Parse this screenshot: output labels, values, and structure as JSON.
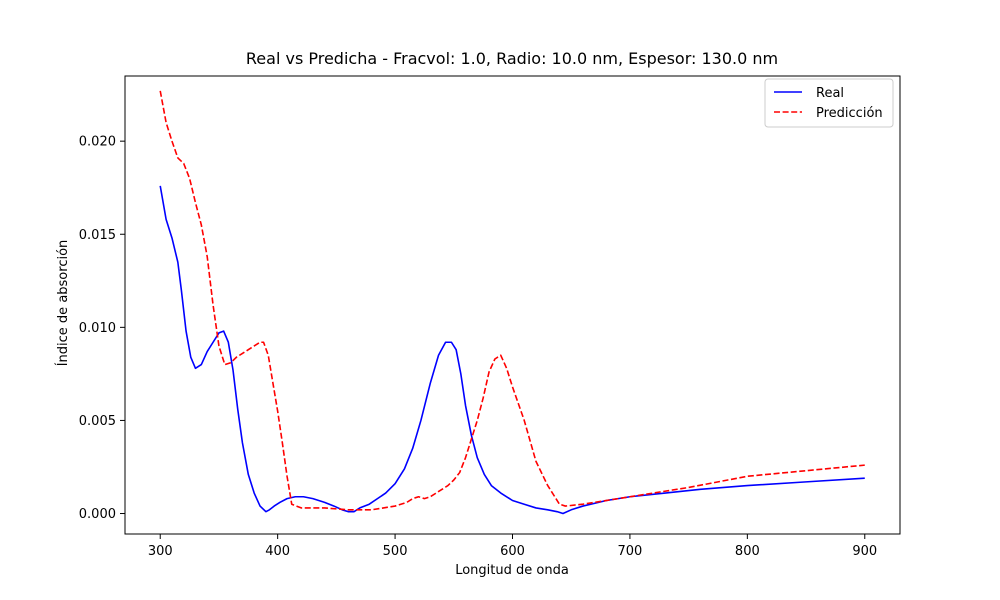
{
  "chart_data": {
    "type": "line",
    "title": "Real vs Predicha - Fracvol: 1.0, Radio: 10.0 nm, Espesor: 130.0 nm",
    "xlabel": "Longitud de onda",
    "ylabel": "Índice de absorción",
    "xlim": [
      270,
      930
    ],
    "ylim": [
      -0.0011,
      0.0235
    ],
    "xticks": [
      300,
      400,
      500,
      600,
      700,
      800,
      900
    ],
    "yticks": [
      0.0,
      0.005,
      0.01,
      0.015,
      0.02
    ],
    "ytick_labels": [
      "0.000",
      "0.005",
      "0.010",
      "0.015",
      "0.020"
    ],
    "grid": false,
    "legend_position": "top-right",
    "series": [
      {
        "name": "Real",
        "color": "#0000ff",
        "style": "solid",
        "x": [
          300,
          305,
          310,
          315,
          318,
          322,
          326,
          330,
          335,
          340,
          345,
          350,
          354,
          358,
          362,
          366,
          370,
          375,
          380,
          385,
          390,
          393,
          397,
          402,
          408,
          415,
          422,
          430,
          440,
          448,
          455,
          460,
          465,
          470,
          478,
          485,
          492,
          500,
          508,
          515,
          522,
          530,
          537,
          543,
          548,
          552,
          556,
          560,
          565,
          570,
          576,
          582,
          590,
          600,
          610,
          620,
          630,
          638,
          643,
          650,
          660,
          680,
          700,
          730,
          760,
          800,
          850,
          900
        ],
        "y": [
          0.0176,
          0.0158,
          0.0148,
          0.0135,
          0.012,
          0.0098,
          0.0084,
          0.0078,
          0.008,
          0.0087,
          0.0092,
          0.0097,
          0.0098,
          0.0092,
          0.0077,
          0.0056,
          0.0038,
          0.0021,
          0.0011,
          0.0004,
          0.0001,
          0.0002,
          0.0004,
          0.0006,
          0.0008,
          0.0009,
          0.0009,
          0.0008,
          0.0006,
          0.0004,
          0.0002,
          0.0001,
          0.0001,
          0.0003,
          0.0005,
          0.0008,
          0.0011,
          0.0016,
          0.0024,
          0.0035,
          0.005,
          0.007,
          0.0085,
          0.0092,
          0.0092,
          0.0088,
          0.0075,
          0.0058,
          0.0042,
          0.003,
          0.0021,
          0.0015,
          0.0011,
          0.0007,
          0.0005,
          0.0003,
          0.0002,
          0.0001,
          0.0,
          0.0002,
          0.0004,
          0.0007,
          0.0009,
          0.0011,
          0.0013,
          0.0015,
          0.0017,
          0.0019
        ]
      },
      {
        "name": "Predicción",
        "color": "#ff0000",
        "style": "dashed",
        "x": [
          300,
          305,
          310,
          315,
          320,
          325,
          330,
          335,
          340,
          345,
          350,
          355,
          360,
          365,
          370,
          375,
          380,
          385,
          388,
          392,
          396,
          400,
          404,
          408,
          412,
          420,
          440,
          460,
          480,
          500,
          510,
          515,
          520,
          525,
          530,
          535,
          540,
          545,
          550,
          555,
          560,
          565,
          570,
          575,
          580,
          585,
          590,
          595,
          600,
          610,
          620,
          630,
          640,
          645,
          660,
          700,
          750,
          800,
          850,
          900
        ],
        "y": [
          0.0227,
          0.021,
          0.02,
          0.0191,
          0.0188,
          0.018,
          0.0167,
          0.0155,
          0.0138,
          0.0112,
          0.009,
          0.008,
          0.0081,
          0.0084,
          0.0086,
          0.0088,
          0.009,
          0.0092,
          0.0092,
          0.0085,
          0.007,
          0.0055,
          0.0038,
          0.002,
          0.0005,
          0.0003,
          0.0003,
          0.0002,
          0.0002,
          0.0004,
          0.0006,
          0.0008,
          0.0009,
          0.0008,
          0.0009,
          0.0011,
          0.0013,
          0.0015,
          0.0018,
          0.0022,
          0.003,
          0.004,
          0.005,
          0.0062,
          0.0076,
          0.0083,
          0.0085,
          0.0078,
          0.0068,
          0.005,
          0.0028,
          0.0015,
          0.0005,
          0.0004,
          0.0005,
          0.0009,
          0.0014,
          0.002,
          0.0023,
          0.0026
        ]
      }
    ]
  }
}
